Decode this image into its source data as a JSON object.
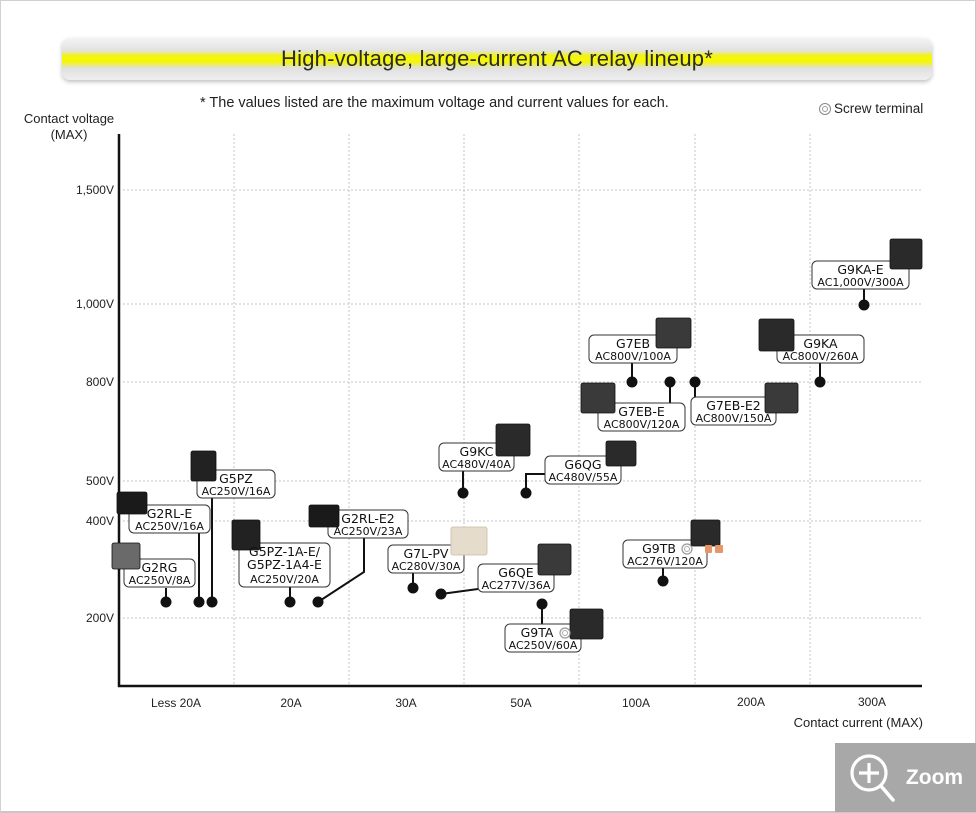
{
  "page": {
    "title": "High-voltage, large-current AC relay lineup*",
    "note": "* The values listed are the maximum voltage and current values for each.",
    "legend": {
      "icon": "screw-terminal-icon",
      "label": "Screw terminal"
    },
    "zoom_button": {
      "icon": "zoom-in-icon",
      "label": "Zoom"
    }
  },
  "chart_data": {
    "type": "scatter",
    "title": "High-voltage, large-current AC relay lineup*",
    "xlabel": "Contact current (MAX)",
    "ylabel_line1": "Contact voltage",
    "ylabel_line2": "(MAX)",
    "x_categories": [
      "Less 20A",
      "20A",
      "30A",
      "50A",
      "100A",
      "200A",
      "300A"
    ],
    "y_ticks": [
      "1,500V",
      "1,000V",
      "800V",
      "500V",
      "400V",
      "200V"
    ],
    "grid": true,
    "legend_position": "top-right",
    "points": [
      {
        "model": "G2RG",
        "rating": "AC250V/8A",
        "voltage": 250,
        "current": 8,
        "screw": false
      },
      {
        "model": "G2RL-E",
        "rating": "AC250V/16A",
        "voltage": 250,
        "current": 16,
        "screw": false
      },
      {
        "model": "G5PZ",
        "rating": "AC250V/16A",
        "voltage": 250,
        "current": 16,
        "screw": false
      },
      {
        "model": "G5PZ-1A-E/\nG5PZ-1A4-E",
        "model_line1": "G5PZ-1A-E/",
        "model_line2": "G5PZ-1A4-E",
        "rating": "AC250V/20A",
        "voltage": 250,
        "current": 20,
        "screw": false
      },
      {
        "model": "G2RL-E2",
        "rating": "AC250V/23A",
        "voltage": 250,
        "current": 23,
        "screw": false
      },
      {
        "model": "G7L-PV",
        "rating": "AC280V/30A",
        "voltage": 280,
        "current": 30,
        "screw": false
      },
      {
        "model": "G6QE",
        "rating": "AC277V/36A",
        "voltage": 277,
        "current": 36,
        "screw": false
      },
      {
        "model": "G9KC",
        "rating": "AC480V/40A",
        "voltage": 480,
        "current": 40,
        "screw": false
      },
      {
        "model": "G6QG",
        "rating": "AC480V/55A",
        "voltage": 480,
        "current": 55,
        "screw": false
      },
      {
        "model": "G9TA",
        "rating": "AC250V/60A",
        "voltage": 250,
        "current": 60,
        "screw": true
      },
      {
        "model": "G7EB",
        "rating": "AC800V/100A",
        "voltage": 800,
        "current": 100,
        "screw": false
      },
      {
        "model": "G9TB",
        "rating": "AC276V/120A",
        "voltage": 276,
        "current": 120,
        "screw": true
      },
      {
        "model": "G7EB-E",
        "rating": "AC800V/120A",
        "voltage": 800,
        "current": 120,
        "screw": false
      },
      {
        "model": "G7EB-E2",
        "rating": "AC800V/150A",
        "voltage": 800,
        "current": 150,
        "screw": false
      },
      {
        "model": "G9KA",
        "rating": "AC800V/260A",
        "voltage": 800,
        "current": 260,
        "screw": false
      },
      {
        "model": "G9KA-E",
        "rating": "AC1,000V/300A",
        "voltage": 1000,
        "current": 300,
        "screw": false
      }
    ]
  }
}
